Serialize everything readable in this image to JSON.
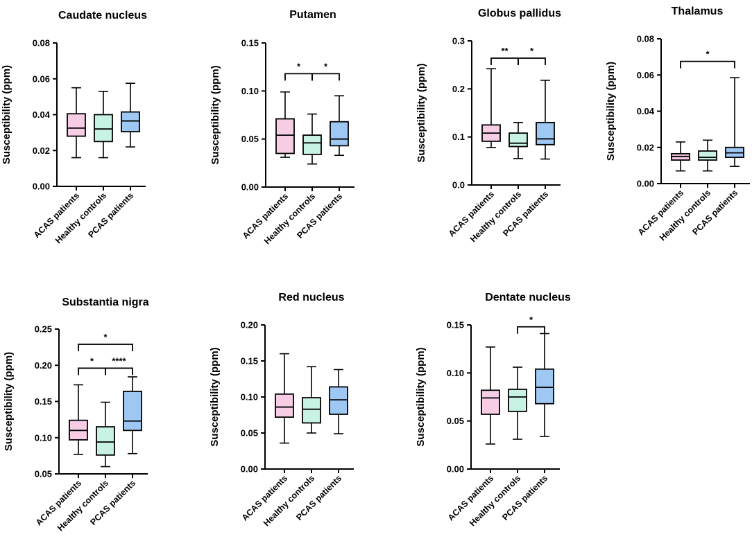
{
  "colors": {
    "ACAS patients": "#f7cde6",
    "Healthy controls": "#c8f2e4",
    "PCAS patients": "#9ec7f3"
  },
  "chart_data": [
    {
      "type": "box",
      "title": "Caudate nucleus",
      "ylabel": "Susceptibility (ppm)",
      "ylim": [
        0,
        0.08
      ],
      "yticks": [
        "0.00",
        "0.02",
        "0.04",
        "0.06",
        "0.08"
      ],
      "categories": [
        "ACAS patients",
        "Healthy controls",
        "PCAS patients"
      ],
      "boxes": [
        {
          "min": 0.016,
          "q1": 0.028,
          "median": 0.0325,
          "q3": 0.0405,
          "max": 0.055
        },
        {
          "min": 0.016,
          "q1": 0.025,
          "median": 0.032,
          "q3": 0.04,
          "max": 0.053
        },
        {
          "min": 0.022,
          "q1": 0.0305,
          "median": 0.0365,
          "q3": 0.0415,
          "max": 0.0575
        }
      ],
      "significance": []
    },
    {
      "type": "box",
      "title": "Putamen",
      "ylabel": "Susceptibility (ppm)",
      "ylim": [
        0,
        0.15
      ],
      "yticks": [
        "0.00",
        "0.05",
        "0.10",
        "0.15"
      ],
      "categories": [
        "ACAS patients",
        "Healthy controls",
        "PCAS patients"
      ],
      "boxes": [
        {
          "min": 0.031,
          "q1": 0.035,
          "median": 0.054,
          "q3": 0.071,
          "max": 0.099
        },
        {
          "min": 0.024,
          "q1": 0.034,
          "median": 0.046,
          "q3": 0.054,
          "max": 0.076
        },
        {
          "min": 0.033,
          "q1": 0.043,
          "median": 0.05,
          "q3": 0.068,
          "max": 0.095
        }
      ],
      "significance": [
        {
          "from": 0,
          "to": 1,
          "y": 0.118,
          "label": "*"
        },
        {
          "from": 1,
          "to": 2,
          "y": 0.118,
          "label": "*"
        }
      ]
    },
    {
      "type": "box",
      "title": "Globus pallidus",
      "ylabel": "Susceptibility (ppm)",
      "ylim": [
        0,
        0.3
      ],
      "yticks": [
        "0.0",
        "0.1",
        "0.2",
        "0.3"
      ],
      "categories": [
        "ACAS patients",
        "Healthy controls",
        "PCAS patients"
      ],
      "boxes": [
        {
          "min": 0.078,
          "q1": 0.091,
          "median": 0.108,
          "q3": 0.125,
          "max": 0.242
        },
        {
          "min": 0.055,
          "q1": 0.08,
          "median": 0.087,
          "q3": 0.108,
          "max": 0.13
        },
        {
          "min": 0.054,
          "q1": 0.084,
          "median": 0.096,
          "q3": 0.13,
          "max": 0.218
        }
      ],
      "significance": [
        {
          "from": 0,
          "to": 1,
          "y": 0.264,
          "label": "**"
        },
        {
          "from": 1,
          "to": 2,
          "y": 0.264,
          "label": "*"
        }
      ]
    },
    {
      "type": "box",
      "title": "Thalamus",
      "ylabel": "Susceptibility (ppm)",
      "ylim": [
        0,
        0.08
      ],
      "yticks": [
        "0.00",
        "0.02",
        "0.04",
        "0.06",
        "0.08"
      ],
      "categories": [
        "ACAS patients",
        "Healthy controls",
        "PCAS patients"
      ],
      "boxes": [
        {
          "min": 0.007,
          "q1": 0.013,
          "median": 0.015,
          "q3": 0.0165,
          "max": 0.023
        },
        {
          "min": 0.007,
          "q1": 0.013,
          "median": 0.0145,
          "q3": 0.018,
          "max": 0.024
        },
        {
          "min": 0.0095,
          "q1": 0.0145,
          "median": 0.017,
          "q3": 0.02,
          "max": 0.0585
        }
      ],
      "significance": [
        {
          "from": 0,
          "to": 2,
          "y": 0.0675,
          "label": "*"
        }
      ]
    },
    {
      "type": "box",
      "title": "Substantia nigra",
      "ylabel": "Susceptibility (ppm)",
      "ylim": [
        0.05,
        0.25
      ],
      "yticks": [
        "0.05",
        "0.10",
        "0.15",
        "0.20",
        "0.25"
      ],
      "categories": [
        "ACAS patients",
        "Healthy controls",
        "PCAS patients"
      ],
      "boxes": [
        {
          "min": 0.077,
          "q1": 0.097,
          "median": 0.11,
          "q3": 0.124,
          "max": 0.173
        },
        {
          "min": 0.06,
          "q1": 0.076,
          "median": 0.094,
          "q3": 0.115,
          "max": 0.149
        },
        {
          "min": 0.078,
          "q1": 0.11,
          "median": 0.123,
          "q3": 0.164,
          "max": 0.184
        }
      ],
      "significance": [
        {
          "from": 0,
          "to": 1,
          "y": 0.196,
          "label": "*"
        },
        {
          "from": 1,
          "to": 2,
          "y": 0.196,
          "label": "****"
        },
        {
          "from": 0,
          "to": 2,
          "y": 0.229,
          "label": "*"
        }
      ]
    },
    {
      "type": "box",
      "title": "Red nucleus",
      "ylabel": "Susceptibility (ppm)",
      "ylim": [
        0,
        0.2
      ],
      "yticks": [
        "0.00",
        "0.05",
        "0.10",
        "0.15",
        "0.20"
      ],
      "categories": [
        "ACAS patients",
        "Healthy controls",
        "PCAS patients"
      ],
      "boxes": [
        {
          "min": 0.036,
          "q1": 0.072,
          "median": 0.086,
          "q3": 0.104,
          "max": 0.16
        },
        {
          "min": 0.05,
          "q1": 0.064,
          "median": 0.083,
          "q3": 0.099,
          "max": 0.142
        },
        {
          "min": 0.049,
          "q1": 0.076,
          "median": 0.096,
          "q3": 0.114,
          "max": 0.138
        }
      ],
      "significance": []
    },
    {
      "type": "box",
      "title": "Dentate nucleus",
      "ylabel": "Susceptibility (ppm)",
      "ylim": [
        0,
        0.15
      ],
      "yticks": [
        "0.00",
        "0.05",
        "0.10",
        "0.15"
      ],
      "categories": [
        "ACAS patients",
        "Healthy controls",
        "PCAS patients"
      ],
      "boxes": [
        {
          "min": 0.026,
          "q1": 0.057,
          "median": 0.074,
          "q3": 0.082,
          "max": 0.127
        },
        {
          "min": 0.031,
          "q1": 0.06,
          "median": 0.075,
          "q3": 0.083,
          "max": 0.106
        },
        {
          "min": 0.034,
          "q1": 0.068,
          "median": 0.085,
          "q3": 0.104,
          "max": 0.141
        }
      ],
      "significance": [
        {
          "from": 1,
          "to": 2,
          "y": 0.148,
          "label": "*"
        }
      ]
    }
  ]
}
